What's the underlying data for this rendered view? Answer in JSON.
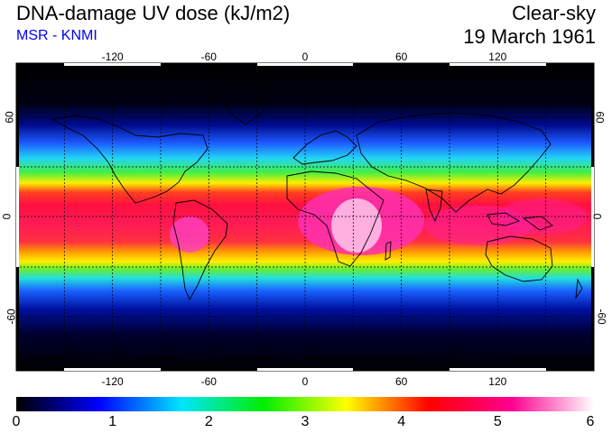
{
  "header": {
    "title": "DNA-damage UV dose (kJ/m2)",
    "subtitle": "MSR - KNMI",
    "mode": "Clear-sky",
    "date": "19 March 1961"
  },
  "map": {
    "lon_ticks": [
      "-120",
      "-60",
      "0",
      "60",
      "120"
    ],
    "lat_ticks_left": [
      "60",
      "0",
      "-60"
    ],
    "lat_ticks_right": [
      "60",
      "0",
      "-60"
    ]
  },
  "colorbar": {
    "labels": [
      "0",
      "1",
      "2",
      "3",
      "4",
      "5",
      "6"
    ],
    "stops": [
      "#000000",
      "#0000ff",
      "#00e5ff",
      "#00ee00",
      "#ffff00",
      "#ff0000",
      "#ff0090",
      "#ffffff"
    ]
  },
  "colors": {
    "title": "#000000",
    "subtitle": "#0000ee"
  }
}
